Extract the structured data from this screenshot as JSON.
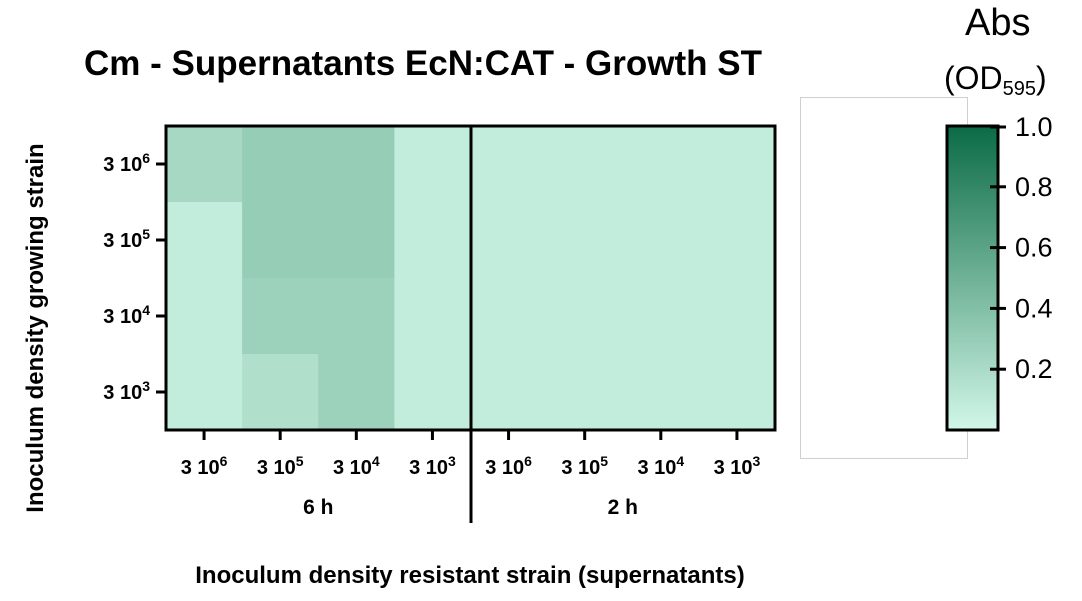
{
  "chart_data": {
    "type": "heatmap",
    "title": "Cm - Supernatants EcN:CAT -  Growth ST",
    "xlabel": "Inoculum density resistant strain (supernatants)",
    "ylabel": "Inoculum density growing strain",
    "x_groups": [
      "6 h",
      "2 h"
    ],
    "x_tick_labels": [
      {
        "base": "3 10",
        "exp": "6"
      },
      {
        "base": "3 10",
        "exp": "5"
      },
      {
        "base": "3 10",
        "exp": "4"
      },
      {
        "base": "3 10",
        "exp": "3"
      },
      {
        "base": "3 10",
        "exp": "6"
      },
      {
        "base": "3 10",
        "exp": "5"
      },
      {
        "base": "3 10",
        "exp": "4"
      },
      {
        "base": "3 10",
        "exp": "3"
      }
    ],
    "y_tick_labels": [
      {
        "base": "3 10",
        "exp": "6"
      },
      {
        "base": "3 10",
        "exp": "5"
      },
      {
        "base": "3 10",
        "exp": "4"
      },
      {
        "base": "3 10",
        "exp": "3"
      }
    ],
    "values": [
      [
        0.22,
        0.3,
        0.3,
        0.08,
        0.08,
        0.08,
        0.08,
        0.08
      ],
      [
        0.08,
        0.3,
        0.3,
        0.08,
        0.08,
        0.08,
        0.08,
        0.08
      ],
      [
        0.08,
        0.27,
        0.27,
        0.08,
        0.08,
        0.08,
        0.08,
        0.08
      ],
      [
        0.08,
        0.17,
        0.27,
        0.08,
        0.08,
        0.08,
        0.08,
        0.08
      ]
    ],
    "colorbar": {
      "title": "Abs",
      "unit_base": "(OD",
      "unit_sub": "595",
      "unit_close": ")",
      "range": [
        0,
        1.0
      ],
      "tick_labels": [
        "1.0",
        "0.8",
        "0.6",
        "0.4",
        "0.2"
      ],
      "tick_values": [
        1.0,
        0.8,
        0.6,
        0.4,
        0.2
      ],
      "color_low": "#d2f7e8",
      "color_high": "#0b6b46"
    }
  }
}
